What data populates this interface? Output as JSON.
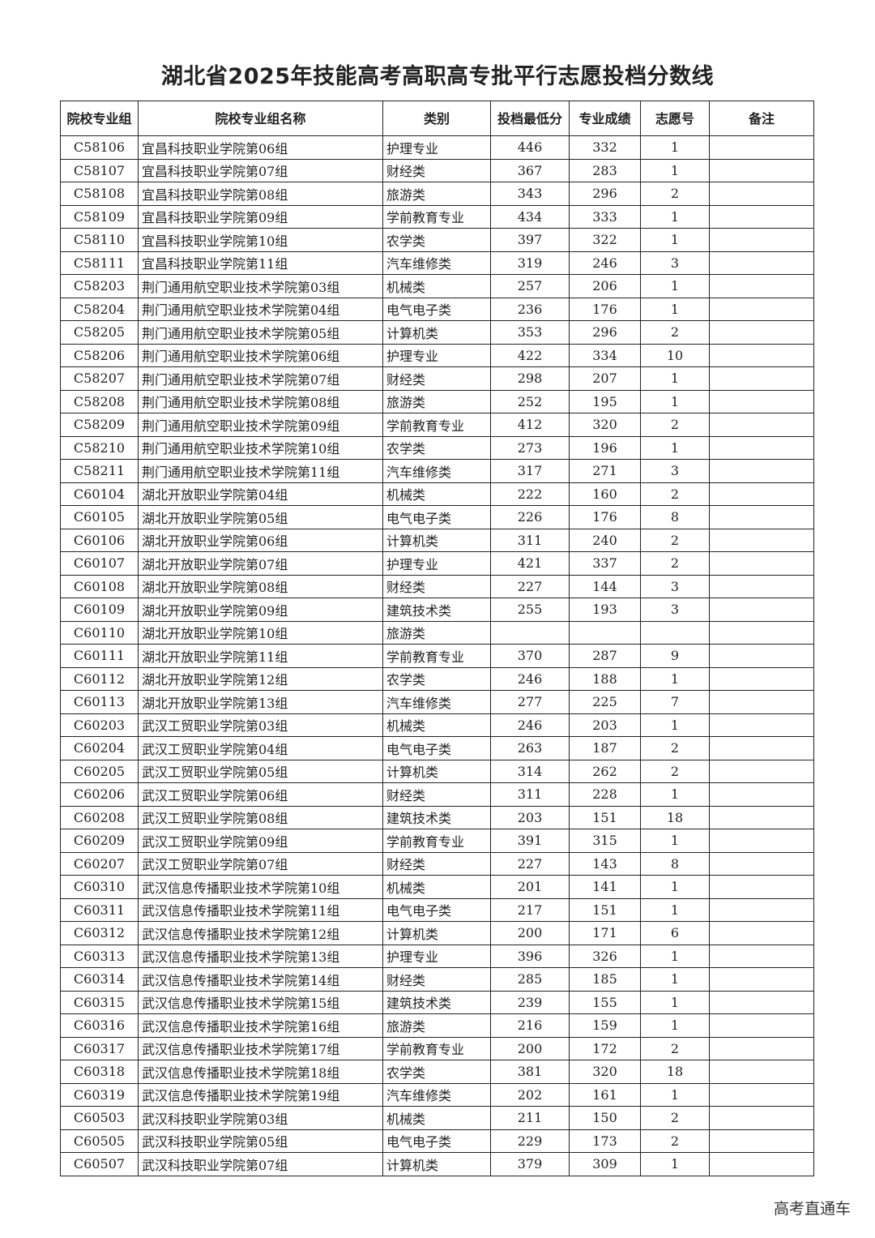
{
  "title": "湖北省2025年技能高考高职高专批平行志愿投档分数线",
  "table": {
    "headers": [
      "院校专业组",
      "院校专业组名称",
      "类别",
      "投档最低分",
      "专业成绩",
      "志愿号",
      "备注"
    ],
    "rows": [
      [
        "C58106",
        "宜昌科技职业学院第06组",
        "护理专业",
        "446",
        "332",
        "1",
        ""
      ],
      [
        "C58107",
        "宜昌科技职业学院第07组",
        "财经类",
        "367",
        "283",
        "1",
        ""
      ],
      [
        "C58108",
        "宜昌科技职业学院第08组",
        "旅游类",
        "343",
        "296",
        "2",
        ""
      ],
      [
        "C58109",
        "宜昌科技职业学院第09组",
        "学前教育专业",
        "434",
        "333",
        "1",
        ""
      ],
      [
        "C58110",
        "宜昌科技职业学院第10组",
        "农学类",
        "397",
        "322",
        "1",
        ""
      ],
      [
        "C58111",
        "宜昌科技职业学院第11组",
        "汽车维修类",
        "319",
        "246",
        "3",
        ""
      ],
      [
        "C58203",
        "荆门通用航空职业技术学院第03组",
        "机械类",
        "257",
        "206",
        "1",
        ""
      ],
      [
        "C58204",
        "荆门通用航空职业技术学院第04组",
        "电气电子类",
        "236",
        "176",
        "1",
        ""
      ],
      [
        "C58205",
        "荆门通用航空职业技术学院第05组",
        "计算机类",
        "353",
        "296",
        "2",
        ""
      ],
      [
        "C58206",
        "荆门通用航空职业技术学院第06组",
        "护理专业",
        "422",
        "334",
        "10",
        ""
      ],
      [
        "C58207",
        "荆门通用航空职业技术学院第07组",
        "财经类",
        "298",
        "207",
        "1",
        ""
      ],
      [
        "C58208",
        "荆门通用航空职业技术学院第08组",
        "旅游类",
        "252",
        "195",
        "1",
        ""
      ],
      [
        "C58209",
        "荆门通用航空职业技术学院第09组",
        "学前教育专业",
        "412",
        "320",
        "2",
        ""
      ],
      [
        "C58210",
        "荆门通用航空职业技术学院第10组",
        "农学类",
        "273",
        "196",
        "1",
        ""
      ],
      [
        "C58211",
        "荆门通用航空职业技术学院第11组",
        "汽车维修类",
        "317",
        "271",
        "3",
        ""
      ],
      [
        "C60104",
        "湖北开放职业学院第04组",
        "机械类",
        "222",
        "160",
        "2",
        ""
      ],
      [
        "C60105",
        "湖北开放职业学院第05组",
        "电气电子类",
        "226",
        "176",
        "8",
        ""
      ],
      [
        "C60106",
        "湖北开放职业学院第06组",
        "计算机类",
        "311",
        "240",
        "2",
        ""
      ],
      [
        "C60107",
        "湖北开放职业学院第07组",
        "护理专业",
        "421",
        "337",
        "2",
        ""
      ],
      [
        "C60108",
        "湖北开放职业学院第08组",
        "财经类",
        "227",
        "144",
        "3",
        ""
      ],
      [
        "C60109",
        "湖北开放职业学院第09组",
        "建筑技术类",
        "255",
        "193",
        "3",
        ""
      ],
      [
        "C60110",
        "湖北开放职业学院第10组",
        "旅游类",
        "",
        "",
        "",
        ""
      ],
      [
        "C60111",
        "湖北开放职业学院第11组",
        "学前教育专业",
        "370",
        "287",
        "9",
        ""
      ],
      [
        "C60112",
        "湖北开放职业学院第12组",
        "农学类",
        "246",
        "188",
        "1",
        ""
      ],
      [
        "C60113",
        "湖北开放职业学院第13组",
        "汽车维修类",
        "277",
        "225",
        "7",
        ""
      ],
      [
        "C60203",
        "武汉工贸职业学院第03组",
        "机械类",
        "246",
        "203",
        "1",
        ""
      ],
      [
        "C60204",
        "武汉工贸职业学院第04组",
        "电气电子类",
        "263",
        "187",
        "2",
        ""
      ],
      [
        "C60205",
        "武汉工贸职业学院第05组",
        "计算机类",
        "314",
        "262",
        "2",
        ""
      ],
      [
        "C60206",
        "武汉工贸职业学院第06组",
        "财经类",
        "311",
        "228",
        "1",
        ""
      ],
      [
        "C60208",
        "武汉工贸职业学院第08组",
        "建筑技术类",
        "203",
        "151",
        "18",
        ""
      ],
      [
        "C60209",
        "武汉工贸职业学院第09组",
        "学前教育专业",
        "391",
        "315",
        "1",
        ""
      ],
      [
        "C60207",
        "武汉工贸职业学院第07组",
        "财经类",
        "227",
        "143",
        "8",
        ""
      ],
      [
        "C60310",
        "武汉信息传播职业技术学院第10组",
        "机械类",
        "201",
        "141",
        "1",
        ""
      ],
      [
        "C60311",
        "武汉信息传播职业技术学院第11组",
        "电气电子类",
        "217",
        "151",
        "1",
        ""
      ],
      [
        "C60312",
        "武汉信息传播职业技术学院第12组",
        "计算机类",
        "200",
        "171",
        "6",
        ""
      ],
      [
        "C60313",
        "武汉信息传播职业技术学院第13组",
        "护理专业",
        "396",
        "326",
        "1",
        ""
      ],
      [
        "C60314",
        "武汉信息传播职业技术学院第14组",
        "财经类",
        "285",
        "185",
        "1",
        ""
      ],
      [
        "C60315",
        "武汉信息传播职业技术学院第15组",
        "建筑技术类",
        "239",
        "155",
        "1",
        ""
      ],
      [
        "C60316",
        "武汉信息传播职业技术学院第16组",
        "旅游类",
        "216",
        "159",
        "1",
        ""
      ],
      [
        "C60317",
        "武汉信息传播职业技术学院第17组",
        "学前教育专业",
        "200",
        "172",
        "2",
        ""
      ],
      [
        "C60318",
        "武汉信息传播职业技术学院第18组",
        "农学类",
        "381",
        "320",
        "18",
        ""
      ],
      [
        "C60319",
        "武汉信息传播职业技术学院第19组",
        "汽车维修类",
        "202",
        "161",
        "1",
        ""
      ],
      [
        "C60503",
        "武汉科技职业学院第03组",
        "机械类",
        "211",
        "150",
        "2",
        ""
      ],
      [
        "C60505",
        "武汉科技职业学院第05组",
        "电气电子类",
        "229",
        "173",
        "2",
        ""
      ],
      [
        "C60507",
        "武汉科技职业学院第07组",
        "计算机类",
        "379",
        "309",
        "1",
        ""
      ]
    ]
  },
  "footer": "高考直通车"
}
